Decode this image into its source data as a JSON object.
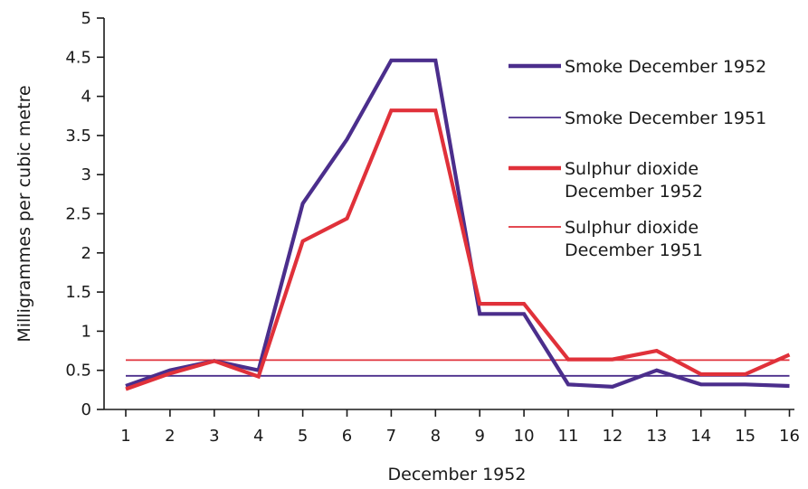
{
  "chart_data": {
    "type": "line",
    "title": "",
    "xlabel": "December 1952",
    "ylabel": "Milligrammes per cubic metre",
    "x": [
      1,
      2,
      3,
      4,
      5,
      6,
      7,
      8,
      9,
      10,
      11,
      12,
      13,
      14,
      15,
      16
    ],
    "x_tick_labels": [
      "1",
      "2",
      "3",
      "4",
      "5",
      "6",
      "7",
      "8",
      "9",
      "10",
      "11",
      "12",
      "13",
      "14",
      "15",
      "16"
    ],
    "y_ticks": [
      0,
      0.5,
      1,
      1.5,
      2,
      2.5,
      3,
      3.5,
      4,
      4.5,
      5
    ],
    "y_tick_labels": [
      "0",
      "0.5",
      "1",
      "1.5",
      "2",
      "2.5",
      "3",
      "3.5",
      "4",
      "4.5",
      "5"
    ],
    "ylim": [
      0,
      5
    ],
    "grid": false,
    "legend_position": "right",
    "series": [
      {
        "name": "Smoke December 1952",
        "legend_lines": [
          "Smoke December 1952"
        ],
        "color": "#4b2e8c",
        "style": "thick",
        "values": [
          0.3,
          0.5,
          0.62,
          0.5,
          2.63,
          3.45,
          4.46,
          4.46,
          1.22,
          1.22,
          0.32,
          0.29,
          0.5,
          0.32,
          0.32,
          0.3
        ]
      },
      {
        "name": "Smoke December 1951",
        "legend_lines": [
          "Smoke December 1951"
        ],
        "color": "#4b2e8c",
        "style": "thin",
        "values": [
          0.43,
          0.43,
          0.43,
          0.43,
          0.43,
          0.43,
          0.43,
          0.43,
          0.43,
          0.43,
          0.43,
          0.43,
          0.43,
          0.43,
          0.43,
          0.43
        ]
      },
      {
        "name": "Sulphur dioxide December 1952",
        "legend_lines": [
          "Sulphur dioxide",
          "December 1952"
        ],
        "color": "#e0313a",
        "style": "thick",
        "values": [
          0.26,
          0.46,
          0.62,
          0.42,
          2.15,
          2.44,
          3.82,
          3.82,
          1.35,
          1.35,
          0.64,
          0.64,
          0.75,
          0.45,
          0.45,
          0.7
        ]
      },
      {
        "name": "Sulphur dioxide December 1951",
        "legend_lines": [
          "Sulphur dioxide",
          "December 1951"
        ],
        "color": "#e0313a",
        "style": "thin",
        "values": [
          0.63,
          0.63,
          0.63,
          0.63,
          0.63,
          0.63,
          0.63,
          0.63,
          0.63,
          0.63,
          0.63,
          0.63,
          0.63,
          0.63,
          0.63,
          0.63
        ]
      }
    ]
  }
}
